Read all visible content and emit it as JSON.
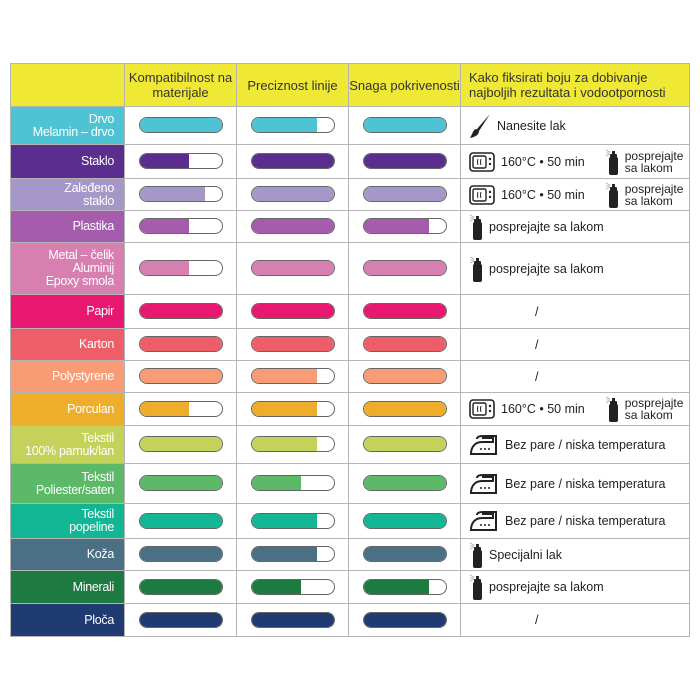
{
  "header": {
    "col1": "Kompatibilnost na materijale",
    "col2": "Preciznost linije",
    "col3": "Snaga pokrivenosti",
    "col4": "Kako fiksirati boju za dobivanje najboljih rezultata i vodootpornosti"
  },
  "rows": [
    {
      "material": "Drvo\nMelamin – drvo",
      "color": "#4ec3d4",
      "levels": [
        100,
        80,
        100
      ],
      "fix": {
        "icon": "brush",
        "text": "Nanesite lak"
      },
      "h": 38
    },
    {
      "material": "Staklo",
      "color": "#5b2d8e",
      "levels": [
        60,
        100,
        100
      ],
      "fix": {
        "icon": "oven-spray",
        "text": "160°C • 50 min",
        "text2": "posprejajte sa lakom"
      },
      "h": 34
    },
    {
      "material": "Zaleđeno\nstaklo",
      "color": "#a597c8",
      "levels": [
        80,
        100,
        100
      ],
      "fix": {
        "icon": "oven-spray",
        "text": "160°C • 50 min",
        "text2": "posprejajte sa lakom"
      },
      "h": 32
    },
    {
      "material": "Plastika",
      "color": "#a55cad",
      "levels": [
        60,
        100,
        80
      ],
      "fix": {
        "icon": "spray",
        "text": "posprejajte sa lakom"
      },
      "h": 32
    },
    {
      "material": "Metal – čelik\nAluminij\nEpoxy smola",
      "color": "#d67fb0",
      "levels": [
        60,
        100,
        100
      ],
      "fix": {
        "icon": "spray",
        "text": "posprejajte sa lakom"
      },
      "h": 52
    },
    {
      "material": "Papir",
      "color": "#e8176f",
      "levels": [
        100,
        100,
        100
      ],
      "fix": {
        "icon": "none",
        "text": "/"
      },
      "h": 34
    },
    {
      "material": "Karton",
      "color": "#ee5e68",
      "levels": [
        100,
        100,
        100
      ],
      "fix": {
        "icon": "none",
        "text": "/"
      },
      "h": 32
    },
    {
      "material": "Polystyrene",
      "color": "#f79c74",
      "levels": [
        100,
        80,
        100
      ],
      "fix": {
        "icon": "none",
        "text": "/"
      },
      "h": 32
    },
    {
      "material": "Porculan",
      "color": "#eeae2b",
      "levels": [
        60,
        80,
        100
      ],
      "fix": {
        "icon": "oven-spray",
        "text": "160°C • 50 min",
        "text2": "posprejajte sa lakom"
      },
      "h": 33
    },
    {
      "material": "Tekstil\n100% pamuk/lan",
      "color": "#c5d259",
      "levels": [
        100,
        80,
        100
      ],
      "fix": {
        "icon": "iron",
        "text": "Bez pare / niska temperatura"
      },
      "h": 38
    },
    {
      "material": "Tekstil\nPoliester/saten",
      "color": "#5cb968",
      "levels": [
        100,
        60,
        100
      ],
      "fix": {
        "icon": "iron",
        "text": "Bez pare / niska temperatura"
      },
      "h": 40
    },
    {
      "material": "Tekstil\npopeline",
      "color": "#12b594",
      "levels": [
        100,
        80,
        100
      ],
      "fix": {
        "icon": "iron",
        "text": "Bez pare / niska temperatura"
      },
      "h": 35
    },
    {
      "material": "Koža",
      "color": "#4b6f85",
      "levels": [
        100,
        80,
        100
      ],
      "fix": {
        "icon": "spray",
        "text": "Specijalni lak"
      },
      "h": 32
    },
    {
      "material": "Minerali",
      "color": "#1d7a40",
      "levels": [
        100,
        60,
        80
      ],
      "fix": {
        "icon": "spray",
        "text": "posprejajte sa lakom"
      },
      "h": 33
    },
    {
      "material": "Ploča",
      "color": "#1f3b72",
      "levels": [
        100,
        100,
        100
      ],
      "fix": {
        "icon": "none",
        "text": "/"
      },
      "h": 33
    }
  ]
}
